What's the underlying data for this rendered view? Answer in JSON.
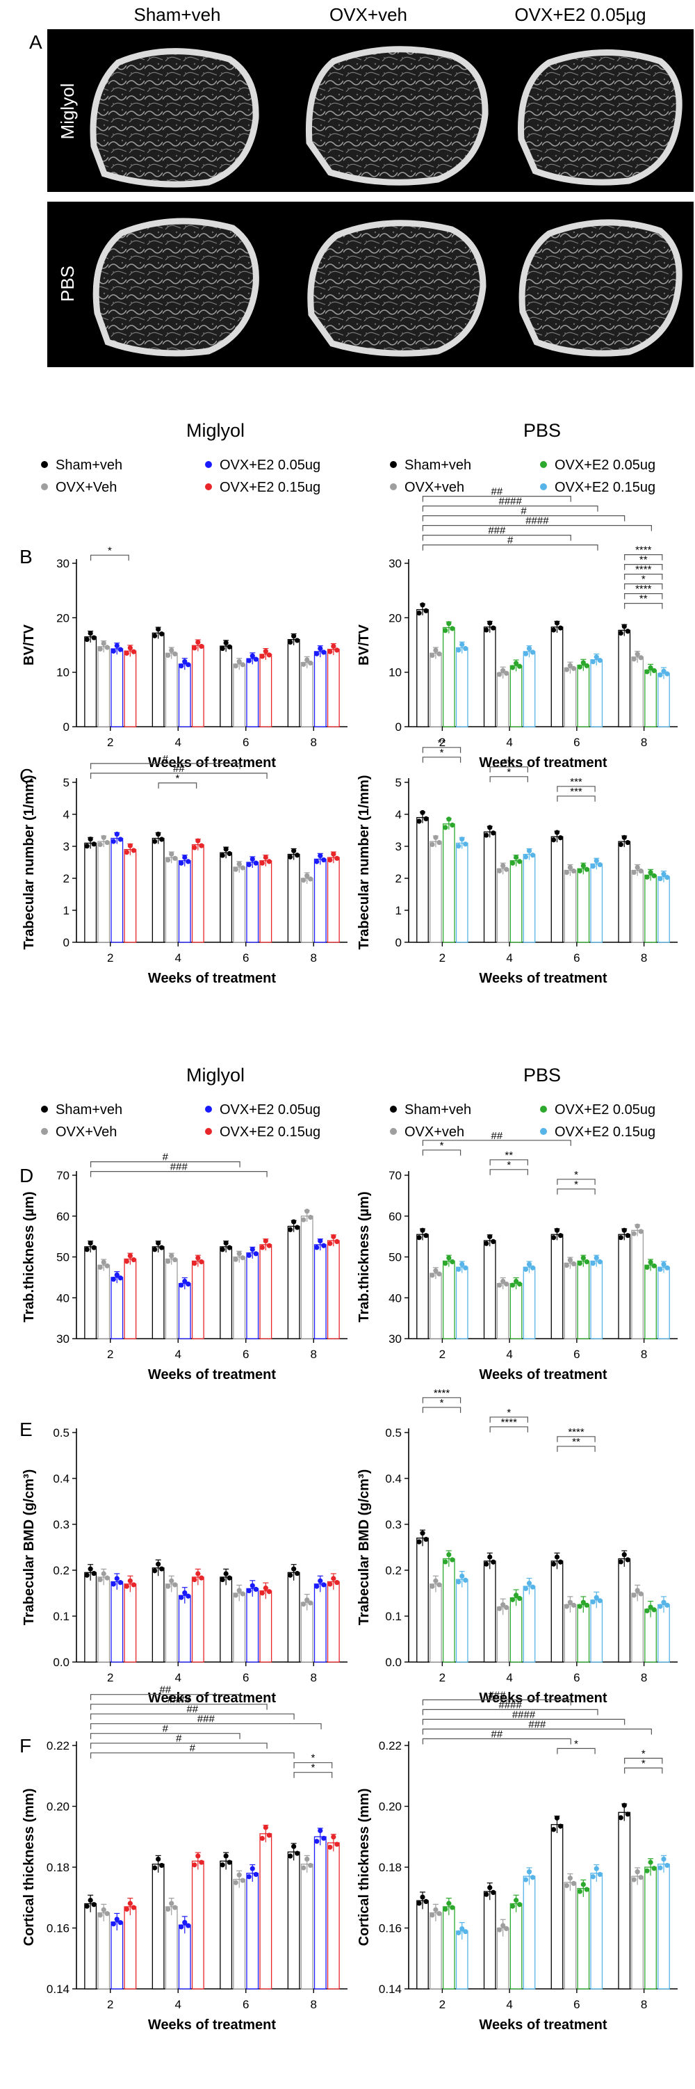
{
  "panels": [
    "A",
    "B",
    "C",
    "D",
    "E",
    "F"
  ],
  "microct": {
    "columns": [
      "Sham+veh",
      "OVX+veh",
      "OVX+E2 0.05µg"
    ],
    "rows": [
      "Miglyol",
      "PBS"
    ]
  },
  "vehicles": [
    "Miglyol",
    "PBS"
  ],
  "legends": {
    "miglyol": [
      "Sham+veh",
      "OVX+Veh",
      "OVX+E2 0.05ug",
      "OVX+E2 0.15ug"
    ],
    "pbs": [
      "Sham+veh",
      "OVX+veh",
      "OVX+E2 0.05ug",
      "OVX+E2 0.15ug"
    ]
  },
  "colors": {
    "sham": "#000000",
    "ovx": "#9e9e9e",
    "e2low_miglyol": "#1a1aff",
    "e2high_miglyol": "#e8262a",
    "e2low_pbs": "#2ca82c",
    "e2high_pbs": "#56b4e9"
  },
  "xlabel": "Weeks of treatment",
  "chart_data": [
    {
      "panel": "B",
      "vehicle": "Miglyol",
      "type": "bar",
      "ylabel": "BV/TV",
      "ylim": [
        0,
        30
      ],
      "yticks": [
        0,
        10,
        20,
        30
      ],
      "categories": [
        "2",
        "4",
        "6",
        "8"
      ],
      "series": [
        {
          "name": "Sham+veh",
          "values": [
            16.5,
            17.2,
            14.8,
            16.0
          ]
        },
        {
          "name": "OVX+Veh",
          "values": [
            14.7,
            13.5,
            11.5,
            11.8
          ]
        },
        {
          "name": "OVX+E2 0.05ug",
          "values": [
            14.3,
            11.5,
            12.5,
            13.8
          ]
        },
        {
          "name": "OVX+E2 0.15ug",
          "values": [
            13.9,
            14.9,
            13.3,
            14.2
          ]
        }
      ],
      "annotations": [
        "*"
      ]
    },
    {
      "panel": "B",
      "vehicle": "PBS",
      "type": "bar",
      "ylabel": "BV/TV",
      "ylim": [
        0,
        30
      ],
      "yticks": [
        0,
        10,
        20,
        30
      ],
      "categories": [
        "2",
        "4",
        "6",
        "8"
      ],
      "series": [
        {
          "name": "Sham+veh",
          "values": [
            21.5,
            18.3,
            18.3,
            17.7
          ]
        },
        {
          "name": "OVX+veh",
          "values": [
            13.5,
            9.9,
            10.8,
            12.8
          ]
        },
        {
          "name": "OVX+E2 0.05ug",
          "values": [
            18.2,
            11.2,
            11.3,
            10.4
          ]
        },
        {
          "name": "OVX+E2 0.15ug",
          "values": [
            14.5,
            13.8,
            12.3,
            9.8
          ]
        }
      ],
      "annotations": [
        "##",
        "####",
        "#",
        "####",
        "###",
        "#",
        "****",
        "**",
        "****",
        "*",
        "****",
        "**"
      ]
    },
    {
      "panel": "C",
      "vehicle": "Miglyol",
      "type": "bar",
      "ylabel": "Trabecular number (1/mm)",
      "ylim": [
        0,
        5
      ],
      "yticks": [
        0,
        1,
        2,
        3,
        4,
        5
      ],
      "categories": [
        "2",
        "4",
        "6",
        "8"
      ],
      "series": [
        {
          "name": "Sham+veh",
          "values": [
            3.1,
            3.25,
            2.8,
            2.75
          ]
        },
        {
          "name": "OVX+Veh",
          "values": [
            3.15,
            2.65,
            2.35,
            2.0
          ]
        },
        {
          "name": "OVX+E2 0.05ug",
          "values": [
            3.25,
            2.55,
            2.5,
            2.6
          ]
        },
        {
          "name": "OVX+E2 0.15ug",
          "values": [
            2.9,
            3.05,
            2.55,
            2.65
          ]
        }
      ],
      "annotations": [
        "#",
        "##",
        "*"
      ]
    },
    {
      "panel": "C",
      "vehicle": "PBS",
      "type": "bar",
      "ylabel": "Trabecular number (1/mm)",
      "ylim": [
        0,
        5
      ],
      "yticks": [
        0,
        1,
        2,
        3,
        4,
        5
      ],
      "categories": [
        "2",
        "4",
        "6",
        "8"
      ],
      "series": [
        {
          "name": "Sham+veh",
          "values": [
            3.9,
            3.45,
            3.3,
            3.15
          ]
        },
        {
          "name": "OVX+veh",
          "values": [
            3.15,
            2.3,
            2.25,
            2.25
          ]
        },
        {
          "name": "OVX+E2 0.05ug",
          "values": [
            3.7,
            2.55,
            2.3,
            2.1
          ]
        },
        {
          "name": "OVX+E2 0.15ug",
          "values": [
            3.1,
            2.75,
            2.45,
            2.05
          ]
        }
      ],
      "annotations": [
        "**",
        "*",
        "***",
        "*",
        "***",
        "***"
      ]
    },
    {
      "panel": "D",
      "vehicle": "Miglyol",
      "type": "bar",
      "ylabel": "Trab.thickness (µm)",
      "ylim": [
        30,
        70
      ],
      "yticks": [
        30,
        40,
        50,
        60,
        70
      ],
      "categories": [
        "2",
        "4",
        "6",
        "8"
      ],
      "series": [
        {
          "name": "Sham+veh",
          "values": [
            52.5,
            52.5,
            52.5,
            57.5
          ]
        },
        {
          "name": "OVX+Veh",
          "values": [
            48.0,
            49.5,
            50.0,
            60.0
          ]
        },
        {
          "name": "OVX+E2 0.05ug",
          "values": [
            45.0,
            43.5,
            51.0,
            53.0
          ]
        },
        {
          "name": "OVX+E2 0.15ug",
          "values": [
            49.5,
            49.0,
            53.0,
            54.0
          ]
        }
      ],
      "annotations": [
        "#",
        "###"
      ]
    },
    {
      "panel": "D",
      "vehicle": "PBS",
      "type": "bar",
      "ylabel": "Trab.thickness (µm)",
      "ylim": [
        30,
        70
      ],
      "yticks": [
        30,
        40,
        50,
        60,
        70
      ],
      "categories": [
        "2",
        "4",
        "6",
        "8"
      ],
      "series": [
        {
          "name": "Sham+veh",
          "values": [
            55.5,
            54.0,
            55.5,
            55.5
          ]
        },
        {
          "name": "OVX+veh",
          "values": [
            46.0,
            43.5,
            48.5,
            56.5
          ]
        },
        {
          "name": "OVX+E2 0.05ug",
          "values": [
            49.0,
            43.5,
            49.0,
            48.0
          ]
        },
        {
          "name": "OVX+E2 0.15ug",
          "values": [
            47.5,
            47.5,
            49.0,
            47.5
          ]
        }
      ],
      "annotations": [
        "##",
        "*",
        "**",
        "*",
        "*",
        "*"
      ]
    },
    {
      "panel": "E",
      "vehicle": "Miglyol",
      "type": "bar",
      "ylabel": "Trabecular BMD (g/cm³)",
      "ylim": [
        0,
        0.5
      ],
      "yticks": [
        0.0,
        0.1,
        0.2,
        0.3,
        0.4,
        0.5
      ],
      "categories": [
        "2",
        "4",
        "6",
        "8"
      ],
      "series": [
        {
          "name": "Sham+veh",
          "values": [
            0.195,
            0.205,
            0.185,
            0.195
          ]
        },
        {
          "name": "OVX+Veh",
          "values": [
            0.185,
            0.17,
            0.15,
            0.13
          ]
        },
        {
          "name": "OVX+E2 0.05ug",
          "values": [
            0.175,
            0.145,
            0.16,
            0.17
          ]
        },
        {
          "name": "OVX+E2 0.15ug",
          "values": [
            0.17,
            0.185,
            0.155,
            0.175
          ]
        }
      ],
      "annotations": []
    },
    {
      "panel": "E",
      "vehicle": "PBS",
      "type": "bar",
      "ylabel": "Trabecular BMD (g/cm³)",
      "ylim": [
        0,
        0.5
      ],
      "yticks": [
        0.0,
        0.1,
        0.2,
        0.3,
        0.4,
        0.5
      ],
      "categories": [
        "2",
        "4",
        "6",
        "8"
      ],
      "series": [
        {
          "name": "Sham+veh",
          "values": [
            0.27,
            0.22,
            0.22,
            0.225
          ]
        },
        {
          "name": "OVX+veh",
          "values": [
            0.17,
            0.12,
            0.125,
            0.15
          ]
        },
        {
          "name": "OVX+E2 0.05ug",
          "values": [
            0.225,
            0.14,
            0.125,
            0.115
          ]
        },
        {
          "name": "OVX+E2 0.15ug",
          "values": [
            0.18,
            0.165,
            0.135,
            0.125
          ]
        }
      ],
      "annotations": [
        "****",
        "*",
        "*",
        "****",
        "****",
        "**"
      ]
    },
    {
      "panel": "F",
      "vehicle": "Miglyol",
      "type": "bar",
      "ylabel": "Cortical thickness (mm)",
      "ylim": [
        0.14,
        0.22
      ],
      "yticks": [
        0.14,
        0.16,
        0.18,
        0.2,
        0.22
      ],
      "categories": [
        "2",
        "4",
        "6",
        "8"
      ],
      "series": [
        {
          "name": "Sham+veh",
          "values": [
            0.168,
            0.181,
            0.182,
            0.185
          ]
        },
        {
          "name": "OVX+Veh",
          "values": [
            0.165,
            0.167,
            0.176,
            0.181
          ]
        },
        {
          "name": "OVX+E2 0.05ug",
          "values": [
            0.162,
            0.161,
            0.178,
            0.19
          ]
        },
        {
          "name": "OVX+E2 0.15ug",
          "values": [
            0.167,
            0.182,
            0.191,
            0.188
          ]
        }
      ],
      "annotations": [
        "##",
        "####",
        "##",
        "###",
        "#",
        "#",
        "#",
        "*",
        "*"
      ]
    },
    {
      "panel": "F",
      "vehicle": "PBS",
      "type": "bar",
      "ylabel": "Cortical thickness (mm)",
      "ylim": [
        0.14,
        0.22
      ],
      "yticks": [
        0.14,
        0.16,
        0.18,
        0.2,
        0.22
      ],
      "categories": [
        "2",
        "4",
        "6",
        "8"
      ],
      "series": [
        {
          "name": "Sham+veh",
          "values": [
            0.169,
            0.172,
            0.194,
            0.198
          ]
        },
        {
          "name": "OVX+veh",
          "values": [
            0.165,
            0.16,
            0.175,
            0.177
          ]
        },
        {
          "name": "OVX+E2 0.05ug",
          "values": [
            0.167,
            0.168,
            0.173,
            0.18
          ]
        },
        {
          "name": "OVX+E2 0.15ug",
          "values": [
            0.159,
            0.177,
            0.178,
            0.181
          ]
        }
      ],
      "annotations": [
        "###",
        "####",
        "####",
        "###",
        "##",
        "*",
        "*",
        "*"
      ]
    }
  ]
}
